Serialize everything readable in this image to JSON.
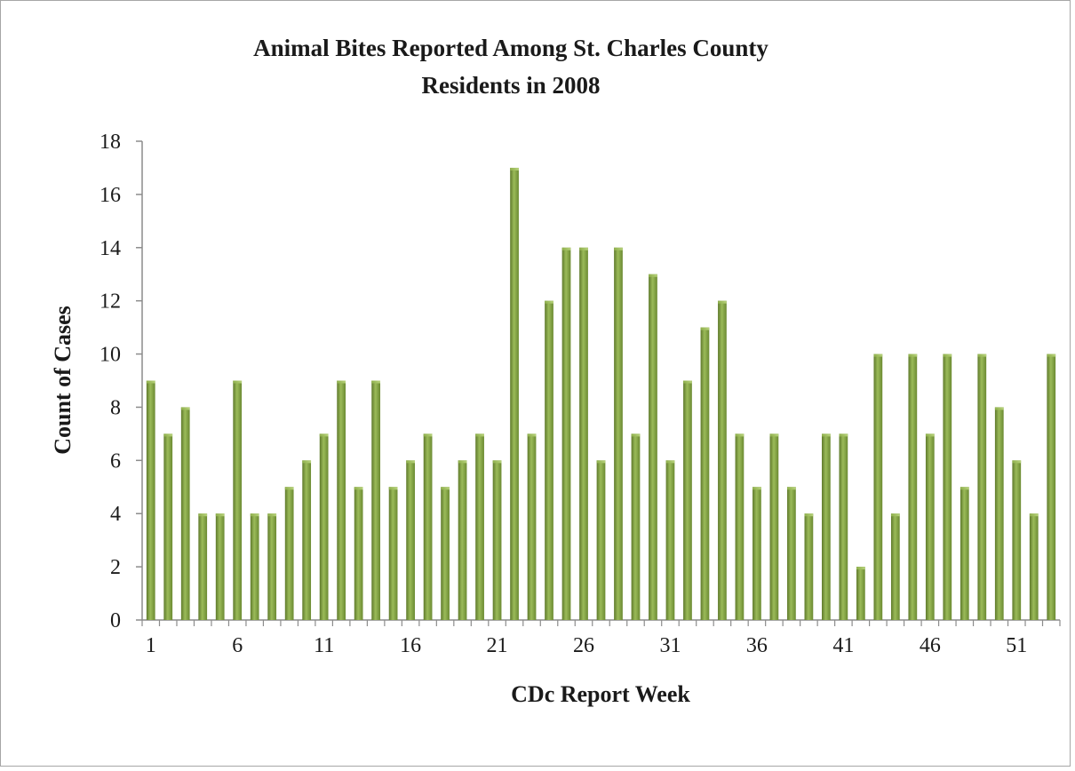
{
  "chart_data": {
    "type": "bar",
    "title_lines": [
      "Animal Bites Reported Among St. Charles County",
      "Residents in 2008"
    ],
    "xlabel": "CDc Report Week",
    "ylabel": "Count of Cases",
    "ylim": [
      0,
      18
    ],
    "yticks": [
      0,
      2,
      4,
      6,
      8,
      10,
      12,
      14,
      16,
      18
    ],
    "x_tick_labels": [
      "1",
      "6",
      "11",
      "16",
      "21",
      "26",
      "31",
      "36",
      "41",
      "46",
      "51"
    ],
    "categories": [
      1,
      2,
      3,
      4,
      5,
      6,
      7,
      8,
      9,
      10,
      11,
      12,
      13,
      14,
      15,
      16,
      17,
      18,
      19,
      20,
      21,
      22,
      23,
      24,
      25,
      26,
      27,
      28,
      29,
      30,
      31,
      32,
      33,
      34,
      35,
      36,
      37,
      38,
      39,
      40,
      41,
      42,
      43,
      44,
      45,
      46,
      47,
      48,
      49,
      50,
      51,
      52,
      53
    ],
    "values": [
      9,
      7,
      8,
      4,
      4,
      9,
      4,
      4,
      5,
      6,
      7,
      9,
      5,
      9,
      5,
      6,
      7,
      5,
      6,
      7,
      6,
      17,
      7,
      12,
      14,
      14,
      6,
      14,
      7,
      13,
      6,
      9,
      11,
      12,
      7,
      5,
      7,
      5,
      4,
      7,
      7,
      2,
      10,
      4,
      10,
      7,
      10,
      5,
      10,
      8,
      6,
      4,
      10
    ],
    "bar_color": "#76923c",
    "bar_highlight": "#9bbb59",
    "grid": false,
    "legend": "none"
  }
}
